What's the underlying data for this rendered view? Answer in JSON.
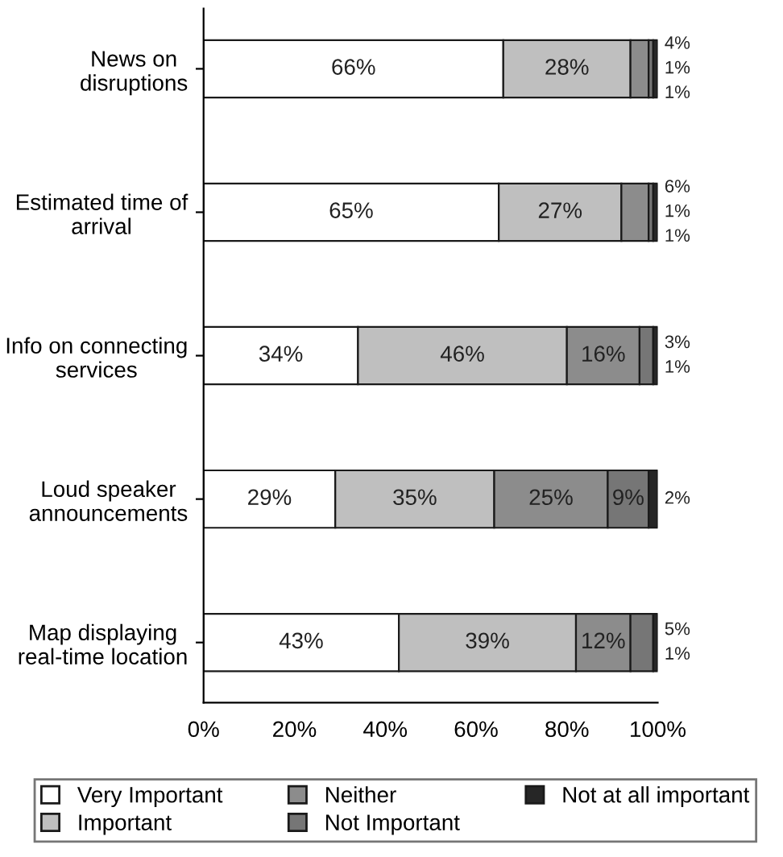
{
  "chart_data": {
    "type": "bar",
    "orientation": "horizontal",
    "stacked": true,
    "categories": [
      "News on disruptions",
      "Estimated time of arrival",
      "Info on connecting services",
      "Loud speaker announcements",
      "Map displaying real-time location"
    ],
    "series": [
      {
        "name": "Very Important",
        "color": "#ffffff",
        "values": [
          66,
          65,
          34,
          29,
          43
        ],
        "value_labels": [
          "66%",
          "65%",
          "34%",
          "29%",
          "43%"
        ]
      },
      {
        "name": "Important",
        "color": "#bfbfbf",
        "values": [
          28,
          27,
          46,
          35,
          39
        ],
        "value_labels": [
          "28%",
          "27%",
          "46%",
          "35%",
          "39%"
        ]
      },
      {
        "name": "Neither",
        "color": "#8c8c8c",
        "values": [
          4,
          6,
          16,
          25,
          12
        ],
        "value_labels": [
          "4%",
          "6%",
          "16%",
          "25%",
          "12%"
        ]
      },
      {
        "name": "Not Important",
        "color": "#767676",
        "values": [
          1,
          1,
          3,
          9,
          5
        ],
        "value_labels": [
          "1%",
          "1%",
          "3%",
          "9%",
          "5%"
        ]
      },
      {
        "name": "Not at all important",
        "color": "#262626",
        "values": [
          1,
          1,
          1,
          2,
          1
        ],
        "value_labels": [
          "1%",
          "1%",
          "1%",
          "2%",
          "1%"
        ]
      }
    ],
    "xlim": [
      0,
      100
    ],
    "xticks": [
      {
        "value": 0,
        "label": "0%"
      },
      {
        "value": 20,
        "label": "20%"
      },
      {
        "value": 40,
        "label": "40%"
      },
      {
        "value": 60,
        "label": "60%"
      },
      {
        "value": 80,
        "label": "80%"
      },
      {
        "value": 100,
        "label": "100%"
      }
    ],
    "grid": false,
    "legend": "bottom"
  }
}
